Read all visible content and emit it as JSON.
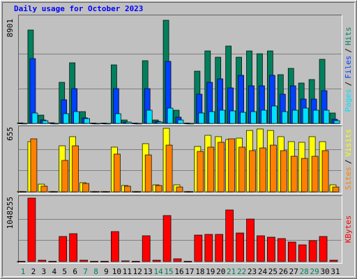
{
  "title": "Daily usage for October 2023",
  "legend_separator": "/",
  "categories": [
    "1",
    "2",
    "3",
    "4",
    "5",
    "6",
    "7",
    "8",
    "9",
    "10",
    "11",
    "12",
    "13",
    "14",
    "15",
    "16",
    "17",
    "18",
    "19",
    "20",
    "21",
    "22",
    "23",
    "24",
    "25",
    "26",
    "27",
    "28",
    "29",
    "30",
    "31"
  ],
  "category_colors": [
    "#00805c",
    "#000000",
    "#000000",
    "#000000",
    "#000000",
    "#000000",
    "#00805c",
    "#00805c",
    "#000000",
    "#000000",
    "#000000",
    "#000000",
    "#000000",
    "#00805c",
    "#00805c",
    "#000000",
    "#000000",
    "#000000",
    "#000000",
    "#000000",
    "#00805c",
    "#00805c",
    "#000000",
    "#000000",
    "#000000",
    "#000000",
    "#000000",
    "#00805c",
    "#00805c",
    "#000000",
    "#000000"
  ],
  "chart_data": [
    {
      "type": "bar",
      "ylim": [
        0,
        8901
      ],
      "yticks": [
        8901
      ],
      "grid_values": [
        3007,
        6014
      ],
      "series": [
        {
          "name": "Hits",
          "color": "#00805c",
          "values": [
            50,
            8059,
            722,
            60,
            3548,
            5232,
            1022,
            40,
            40,
            5052,
            300,
            40,
            5413,
            300,
            8901,
            1143,
            40,
            4511,
            6255,
            5713,
            6676,
            5713,
            6255,
            6014,
            6255,
            4210,
            4751,
            3488,
            3789,
            5533,
            902
          ]
        },
        {
          "name": "Files",
          "color": "#0040ff",
          "values": [
            20,
            5593,
            300,
            20,
            2045,
            3007,
            481,
            15,
            15,
            3007,
            120,
            15,
            3007,
            180,
            5353,
            541,
            15,
            2526,
            3548,
            3849,
            3067,
            4150,
            3248,
            3248,
            4150,
            2526,
            3248,
            2105,
            2105,
            2827,
            361
          ]
        },
        {
          "name": "Pages",
          "color": "#00e0ff",
          "values": [
            10,
            902,
            240,
            10,
            842,
            1022,
            421,
            10,
            10,
            842,
            120,
            10,
            1143,
            120,
            1323,
            300,
            10,
            902,
            1022,
            1143,
            1083,
            962,
            1022,
            1143,
            1504,
            1022,
            1143,
            1323,
            1143,
            1143,
            240
          ]
        }
      ]
    },
    {
      "type": "bar",
      "ylim": [
        0,
        655
      ],
      "yticks": [
        655
      ],
      "grid_values": [
        223,
        439
      ],
      "series": [
        {
          "name": "Visits",
          "color": "#ffff00",
          "values": [
            5,
            518,
            79,
            5,
            475,
            569,
            94,
            5,
            5,
            461,
            65,
            5,
            497,
            72,
            655,
            72,
            5,
            468,
            583,
            569,
            540,
            554,
            633,
            648,
            633,
            569,
            518,
            511,
            569,
            518,
            72
          ]
        },
        {
          "name": "Sites",
          "color": "#ff8000",
          "values": [
            4,
            547,
            58,
            4,
            324,
            475,
            86,
            4,
            4,
            389,
            58,
            4,
            381,
            65,
            482,
            50,
            4,
            417,
            461,
            511,
            547,
            461,
            425,
            453,
            482,
            425,
            367,
            345,
            367,
            425,
            50
          ]
        }
      ]
    },
    {
      "type": "bar",
      "ylim": [
        0,
        1048255
      ],
      "yticks": [
        1048255
      ],
      "grid_values": [
        357076,
        702677
      ],
      "series": [
        {
          "name": "KBytes",
          "color": "#ff0000",
          "values": [
            5000,
            1048255,
            23038,
            5000,
            414695,
            460772,
            23038,
            5000,
            5000,
            495329,
            11519,
            5000,
            426214,
            23038,
            760273,
            46077,
            5000,
            437733,
            449253,
            449253,
            852426,
            472291,
            702677,
            426214,
            403175,
            380136,
            322540,
            276463,
            345578,
            414695,
            23038
          ]
        }
      ]
    }
  ]
}
